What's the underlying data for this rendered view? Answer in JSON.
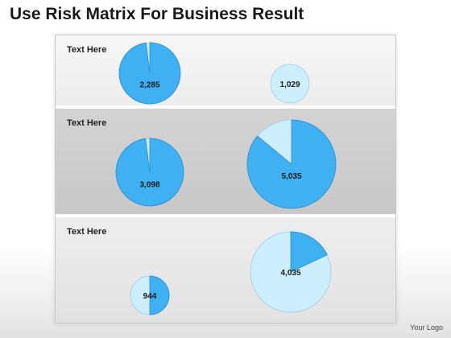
{
  "title": "Use Risk Matrix For Business Result",
  "rows": [
    {
      "label": "Text Here"
    },
    {
      "label": "Text Here"
    },
    {
      "label": "Text Here"
    }
  ],
  "chart_data": {
    "type": "pie",
    "colors": {
      "dark": "#3fb0f2",
      "light": "#cdeefc",
      "border": "#2b8ccd"
    },
    "pies": [
      {
        "row": 1,
        "column": 1,
        "label": "2,285",
        "dark_fraction": 0.98
      },
      {
        "row": 1,
        "column": 2,
        "label": "1,029",
        "dark_fraction": 0.0
      },
      {
        "row": 2,
        "column": 1,
        "label": "3,098",
        "dark_fraction": 0.98
      },
      {
        "row": 2,
        "column": 2,
        "label": "5,035",
        "dark_fraction": 0.86
      },
      {
        "row": 3,
        "column": 1,
        "label": "944",
        "dark_fraction": 0.5
      },
      {
        "row": 3,
        "column": 2,
        "label": "4,035",
        "dark_fraction": 0.18
      }
    ]
  },
  "logo": "Your Logo"
}
